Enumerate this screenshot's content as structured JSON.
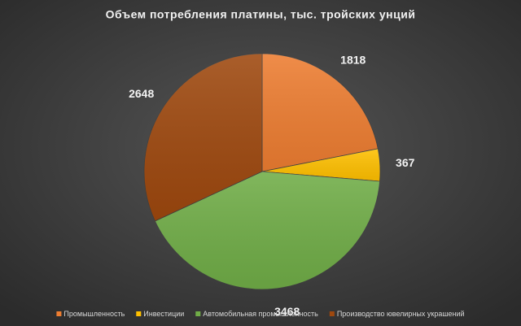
{
  "chart_data": {
    "type": "pie",
    "title": "Объем потребления платины, тыс. тройских унций",
    "categories": [
      "Промышленность",
      "Инвестиции",
      "Автомобильная промышленность",
      "Производство ювелирных украшений"
    ],
    "values": [
      1818,
      367,
      3468,
      2648
    ],
    "colors": [
      "#ed7d31",
      "#ffc000",
      "#70ad47",
      "#9e480e"
    ],
    "legend": "bottom"
  }
}
